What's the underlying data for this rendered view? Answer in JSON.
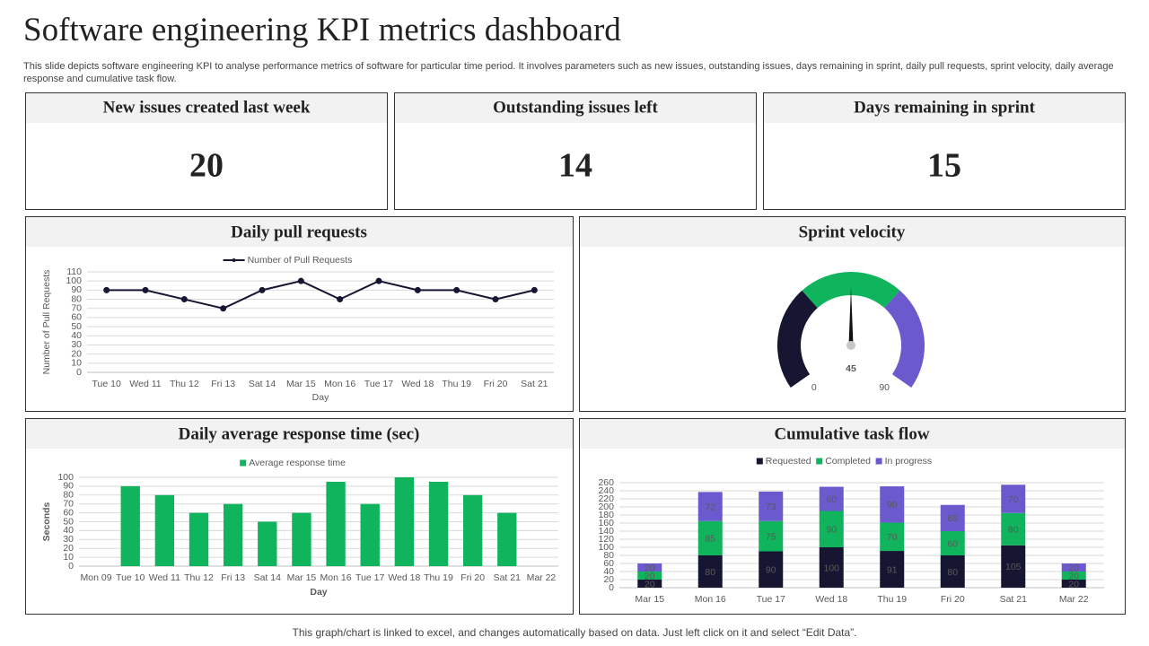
{
  "header": {
    "title": "Software engineering KPI metrics dashboard",
    "description": "This slide depicts software engineering KPI to analyse  performance metrics of software for particular time period. It involves parameters such as new issues, outstanding issues, days remaining in sprint, daily pull requests, sprint velocity,  daily average response and cumulative task flow."
  },
  "kpis": [
    {
      "label": "New issues created last week",
      "value": 20
    },
    {
      "label": "Outstanding issues left",
      "value": 14
    },
    {
      "label": "Days remaining in sprint",
      "value": 15
    }
  ],
  "chart_data": [
    {
      "type": "line",
      "title": "Daily pull requests",
      "xlabel": "Day",
      "ylabel": "Number of Pull Requests",
      "categories": [
        "Tue 10",
        "Wed 11",
        "Thu 12",
        "Fri 13",
        "Sat 14",
        "Mar 15",
        "Mon 16",
        "Tue 17",
        "Wed 18",
        "Thu 19",
        "Fri 20",
        "Sat 21"
      ],
      "series": [
        {
          "name": "Number of Pull Requests",
          "color": "#161633",
          "values": [
            90,
            90,
            80,
            70,
            90,
            100,
            80,
            100,
            90,
            90,
            80,
            90
          ]
        }
      ],
      "ylim": [
        0,
        110
      ],
      "yticks": [
        0,
        10,
        20,
        30,
        40,
        50,
        60,
        70,
        80,
        90,
        100,
        110
      ],
      "grid": true
    },
    {
      "type": "gauge",
      "title": "Sprint velocity",
      "value": 45,
      "ylim": [
        0,
        90
      ],
      "colors": [
        "#161633",
        "#10b45c",
        "#6a5acd"
      ]
    },
    {
      "type": "bar",
      "title": "Daily average response time (sec)",
      "xlabel": "Day",
      "ylabel": "Seconds",
      "categories": [
        "Mon 09",
        "Tue 10",
        "Wed 11",
        "Thu 12",
        "Fri 13",
        "Sat 14",
        "Mar 15",
        "Mon 16",
        "Tue 17",
        "Wed 18",
        "Thu 19",
        "Fri 20",
        "Sat 21",
        "Mar 22"
      ],
      "series": [
        {
          "name": "Average response time",
          "color": "#10b45c",
          "values": [
            null,
            90,
            80,
            60,
            70,
            50,
            60,
            95,
            70,
            100,
            95,
            80,
            60,
            null
          ]
        }
      ],
      "ylim": [
        0,
        100
      ],
      "yticks": [
        0,
        10,
        20,
        30,
        40,
        50,
        60,
        70,
        80,
        90,
        100
      ],
      "grid": true
    },
    {
      "type": "stacked-bar",
      "title": "Cumulative task flow",
      "categories": [
        "Mar 15",
        "Mon 16",
        "Tue 17",
        "Wed 18",
        "Thu 19",
        "Fri 20",
        "Sat 21",
        "Mar 22"
      ],
      "series": [
        {
          "name": "Requested",
          "color": "#161633",
          "values": [
            20,
            80,
            90,
            100,
            91,
            80,
            105,
            20
          ]
        },
        {
          "name": "Completed",
          "color": "#10b45c",
          "values": [
            20,
            85,
            75,
            90,
            70,
            60,
            80,
            20
          ]
        },
        {
          "name": "In progress",
          "color": "#6a5acd",
          "values": [
            20,
            72,
            73,
            60,
            90,
            65,
            70,
            20
          ]
        }
      ],
      "ylim": [
        0,
        260
      ],
      "yticks": [
        0,
        20,
        40,
        60,
        80,
        100,
        120,
        140,
        160,
        180,
        200,
        220,
        240,
        260
      ],
      "grid": true
    }
  ],
  "footer": "This graph/chart is linked to excel,  and changes automatically based on data. Just left click on it and select “Edit Data”."
}
